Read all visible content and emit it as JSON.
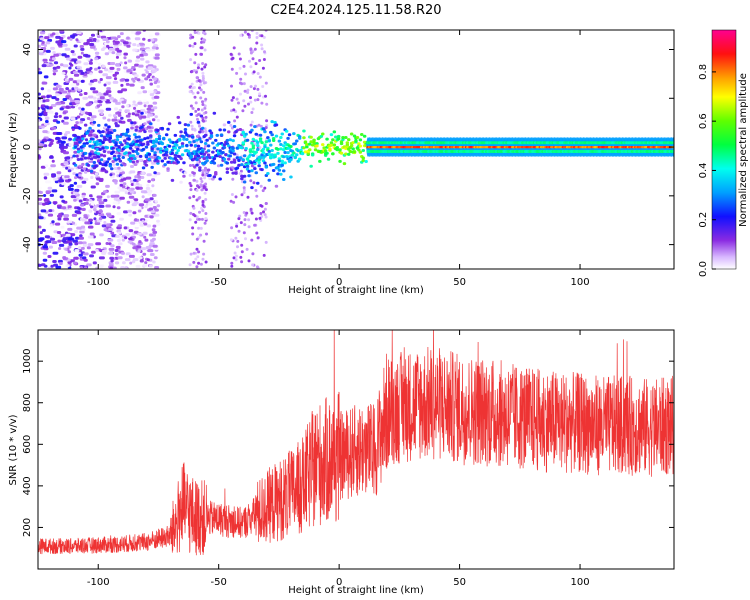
{
  "title": "C2E4.2024.125.11.58.R20",
  "colors": {
    "snr_line": "#ee3333",
    "axis": "#000000"
  },
  "chart_data": [
    {
      "type": "heatmap",
      "xlabel": "Height of straight line (km)",
      "ylabel": "Frequency (Hz)",
      "xlim": [
        -125,
        139
      ],
      "ylim": [
        -50,
        48
      ],
      "xticks": [
        -100,
        -50,
        0,
        50,
        100
      ],
      "yticks": [
        -40,
        -20,
        0,
        20,
        40
      ],
      "colorbar": {
        "label": "Normalized spectral amplitude",
        "range": [
          0,
          0.97
        ],
        "ticks": [
          "0.0",
          "0.2",
          "0.4",
          "0.6",
          "0.8"
        ],
        "colormap": "rainbow"
      },
      "features": {
        "carrier_frequency_hz": 0,
        "carrier_band_start_km": 12,
        "carrier_band_end_km": 139,
        "carrier_amplitude": 0.85,
        "scatter_region_km": [
          -125,
          -75
        ],
        "noise_columns_km": [
          [
            -62,
            -55
          ],
          [
            -45,
            -30
          ]
        ]
      }
    },
    {
      "type": "line",
      "xlabel": "Height of straight line (km)",
      "ylabel": "SNR (10 * v/v)",
      "xlim": [
        -125,
        139
      ],
      "ylim": [
        0,
        1150
      ],
      "xticks": [
        -100,
        -50,
        0,
        50,
        100
      ],
      "yticks": [
        200,
        400,
        600,
        800,
        1000
      ],
      "series": [
        {
          "x": [
            -125,
            -110,
            -100,
            -90,
            -80,
            -70,
            -65,
            -60,
            -50,
            -40,
            -35,
            -30,
            -20,
            -15,
            -10,
            -5,
            0,
            5,
            10,
            15,
            20,
            30,
            40,
            50,
            60,
            70,
            80,
            90,
            100,
            110,
            120,
            130,
            139
          ],
          "y": [
            110,
            110,
            115,
            120,
            130,
            160,
            300,
            250,
            240,
            220,
            260,
            300,
            360,
            400,
            500,
            520,
            540,
            560,
            580,
            570,
            760,
            790,
            800,
            770,
            760,
            740,
            720,
            710,
            700,
            690,
            690,
            680,
            690
          ]
        }
      ]
    }
  ]
}
